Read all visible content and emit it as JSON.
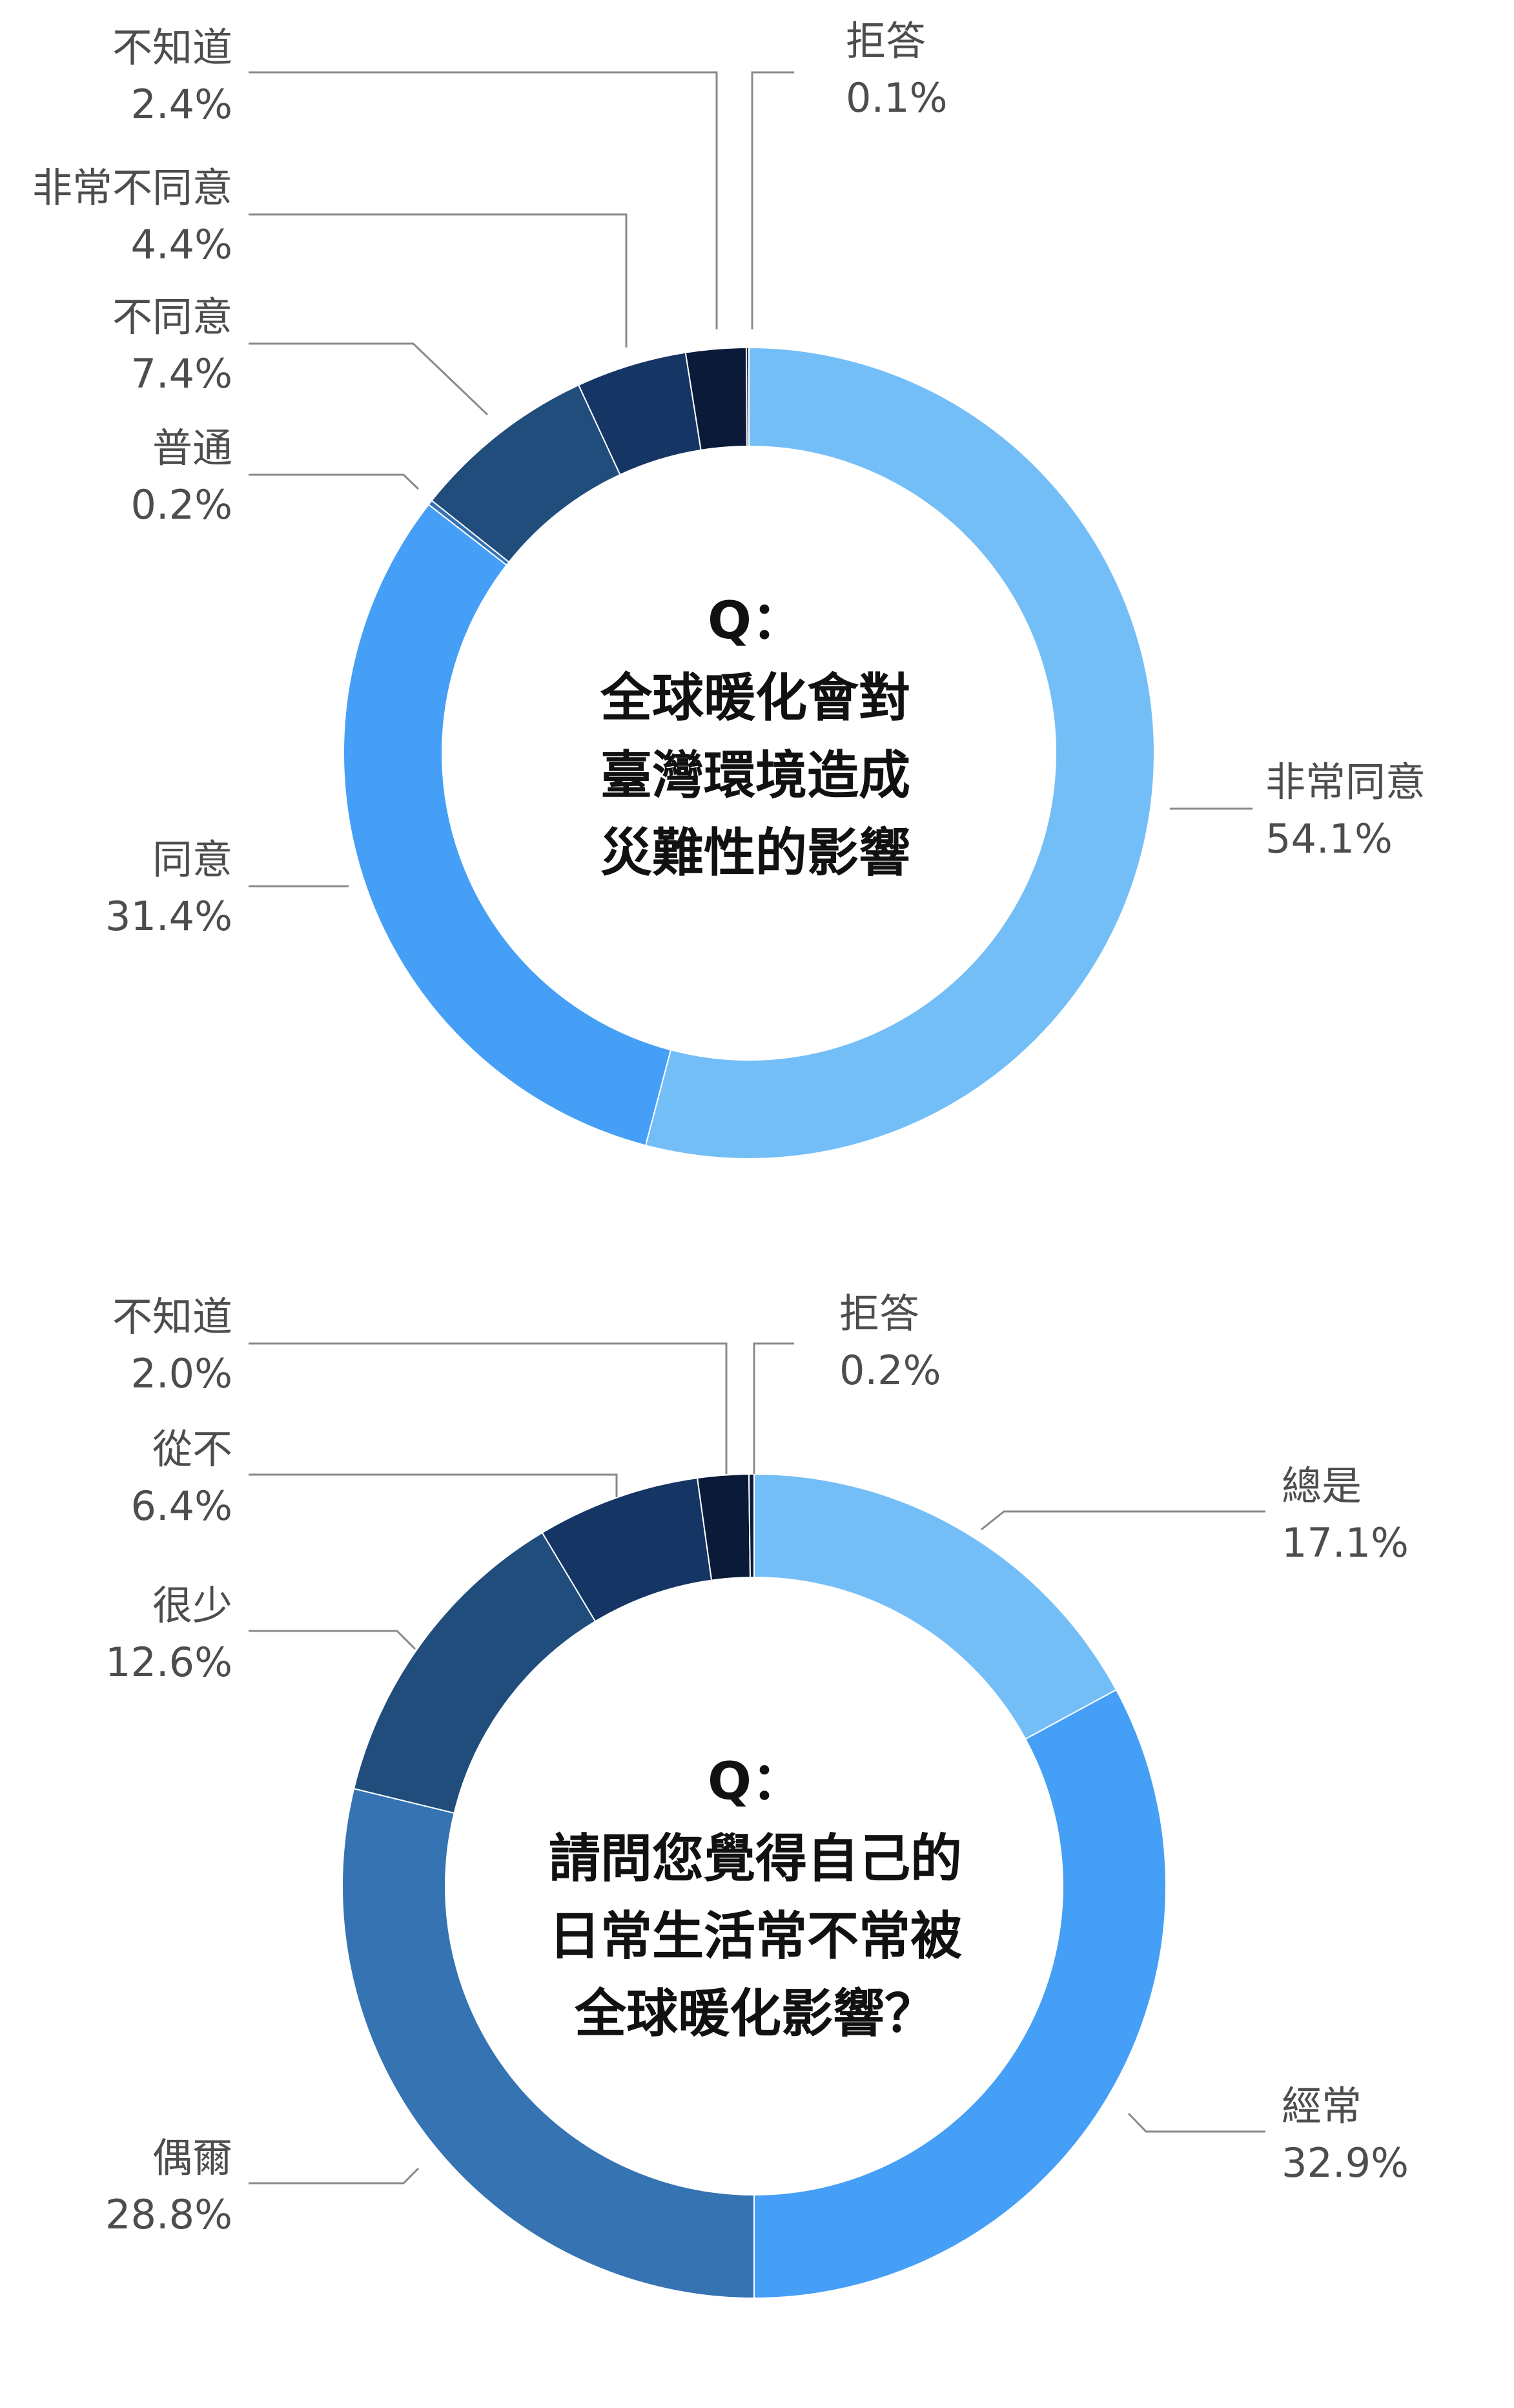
{
  "colors": {
    "light_blue": "#74BEF8",
    "blue": "#459FF6",
    "steel_blue": "#3573B3",
    "dark_blue": "#204D7C",
    "navy": "#153564",
    "midnight": "#0B1A38"
  },
  "chart_data": [
    {
      "type": "pie",
      "center_text": [
        "Q：",
        "全球暖化會對",
        "臺灣環境造成",
        "災難性的影響"
      ],
      "slices": [
        {
          "label": "非常同意",
          "value": 54.1,
          "value_text": "54.1%",
          "color": "#74BEF8"
        },
        {
          "label": "同意",
          "value": 31.4,
          "value_text": "31.4%",
          "color": "#459FF6"
        },
        {
          "label": "普通",
          "value": 0.2,
          "value_text": "0.2%",
          "color": "#3573B3"
        },
        {
          "label": "不同意",
          "value": 7.4,
          "value_text": "7.4%",
          "color": "#204D7C"
        },
        {
          "label": "非常不同意",
          "value": 4.4,
          "value_text": "4.4%",
          "color": "#153564"
        },
        {
          "label": "不知道",
          "value": 2.4,
          "value_text": "2.4%",
          "color": "#0B1A38"
        },
        {
          "label": "拒答",
          "value": 0.1,
          "value_text": "0.1%",
          "color": "#0B1A38"
        }
      ],
      "legend": "none"
    },
    {
      "type": "pie",
      "center_text": [
        "Q：",
        "請問您覺得自己的",
        "日常生活常不常被",
        "全球暖化影響？"
      ],
      "slices": [
        {
          "label": "總是",
          "value": 17.1,
          "value_text": "17.1%",
          "color": "#74BEF8"
        },
        {
          "label": "經常",
          "value": 32.9,
          "value_text": "32.9%",
          "color": "#459FF6"
        },
        {
          "label": "偶爾",
          "value": 28.8,
          "value_text": "28.8%",
          "color": "#3573B3"
        },
        {
          "label": "很少",
          "value": 12.6,
          "value_text": "12.6%",
          "color": "#204D7C"
        },
        {
          "label": "從不",
          "value": 6.4,
          "value_text": "6.4%",
          "color": "#153564"
        },
        {
          "label": "不知道",
          "value": 2.0,
          "value_text": "2.0%",
          "color": "#0B1A38"
        },
        {
          "label": "拒答",
          "value": 0.2,
          "value_text": "0.2%",
          "color": "#0B1A38"
        }
      ],
      "legend": "none"
    }
  ]
}
